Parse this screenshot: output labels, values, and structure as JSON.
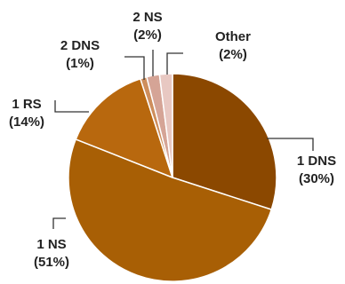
{
  "chart_data": {
    "type": "pie",
    "title": "",
    "start_angle_deg": 0,
    "direction": "clockwise",
    "slices": [
      {
        "label": "1 DNS",
        "value_label": "(30%)",
        "value": 30,
        "color": "#8B4800"
      },
      {
        "label": "1 NS",
        "value_label": "(51%)",
        "value": 51,
        "color": "#A85F05"
      },
      {
        "label": "1 RS",
        "value_label": "(14%)",
        "value": 14,
        "color": "#B8680E"
      },
      {
        "label": "2 DNS",
        "value_label": "(1%)",
        "value": 1,
        "color": "#CE8E5C"
      },
      {
        "label": "2 NS",
        "value_label": "(2%)",
        "value": 2,
        "color": "#D5A496"
      },
      {
        "label": "Other",
        "value_label": "(2%)",
        "value": 2,
        "color": "#E8C8C2"
      }
    ]
  }
}
